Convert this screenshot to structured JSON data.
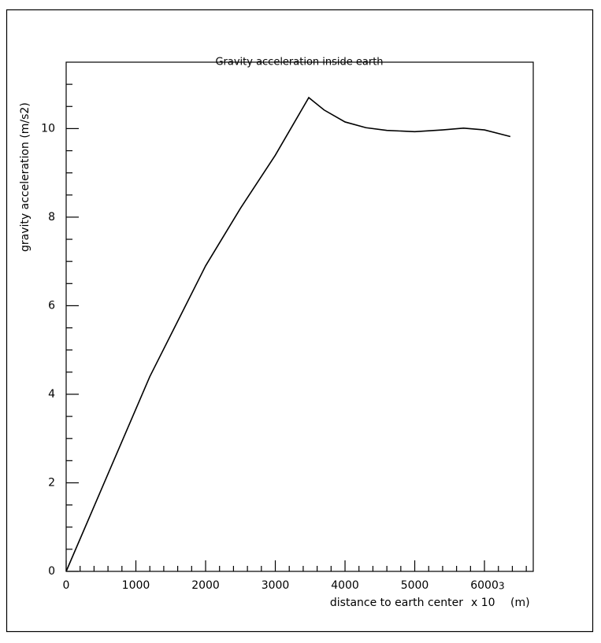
{
  "chart_data": {
    "type": "line",
    "title": "Gravity acceleration inside earth",
    "xlabel": "distance to earth center",
    "xlabel_scale": "x 10",
    "xlabel_exponent": "3",
    "xlabel_unit": "(m)",
    "ylabel": "gravity acceleration (m/s2)",
    "x": [
      0,
      600,
      1200,
      1600,
      2000,
      2500,
      3000,
      3480,
      3700,
      4000,
      4300,
      4600,
      5000,
      5400,
      5700,
      6000,
      6371
    ],
    "series": [
      {
        "color": "#000000",
        "values": [
          0,
          2.2,
          4.4,
          5.65,
          6.9,
          8.2,
          9.4,
          10.7,
          10.42,
          10.15,
          10.02,
          9.96,
          9.93,
          9.97,
          10.01,
          9.97,
          9.82
        ]
      }
    ],
    "xlim": [
      0,
      6700
    ],
    "ylim": [
      0,
      11.5
    ],
    "xticks": [
      0,
      1000,
      2000,
      3000,
      4000,
      5000,
      6000
    ],
    "yticks": [
      0,
      2,
      4,
      6,
      8,
      10
    ],
    "xminorticks": [
      200,
      400,
      600,
      800,
      1200,
      1400,
      1600,
      1800,
      2200,
      2400,
      2600,
      2800,
      3200,
      3400,
      3600,
      3800,
      4200,
      4400,
      4600,
      4800,
      5200,
      5400,
      5600,
      5800,
      6200,
      6400,
      6600
    ],
    "yminorticks": [
      0.5,
      1,
      1.5,
      2.5,
      3,
      3.5,
      4.5,
      5,
      5.5,
      6.5,
      7,
      7.5,
      8.5,
      9,
      9.5,
      10.5,
      11
    ]
  }
}
